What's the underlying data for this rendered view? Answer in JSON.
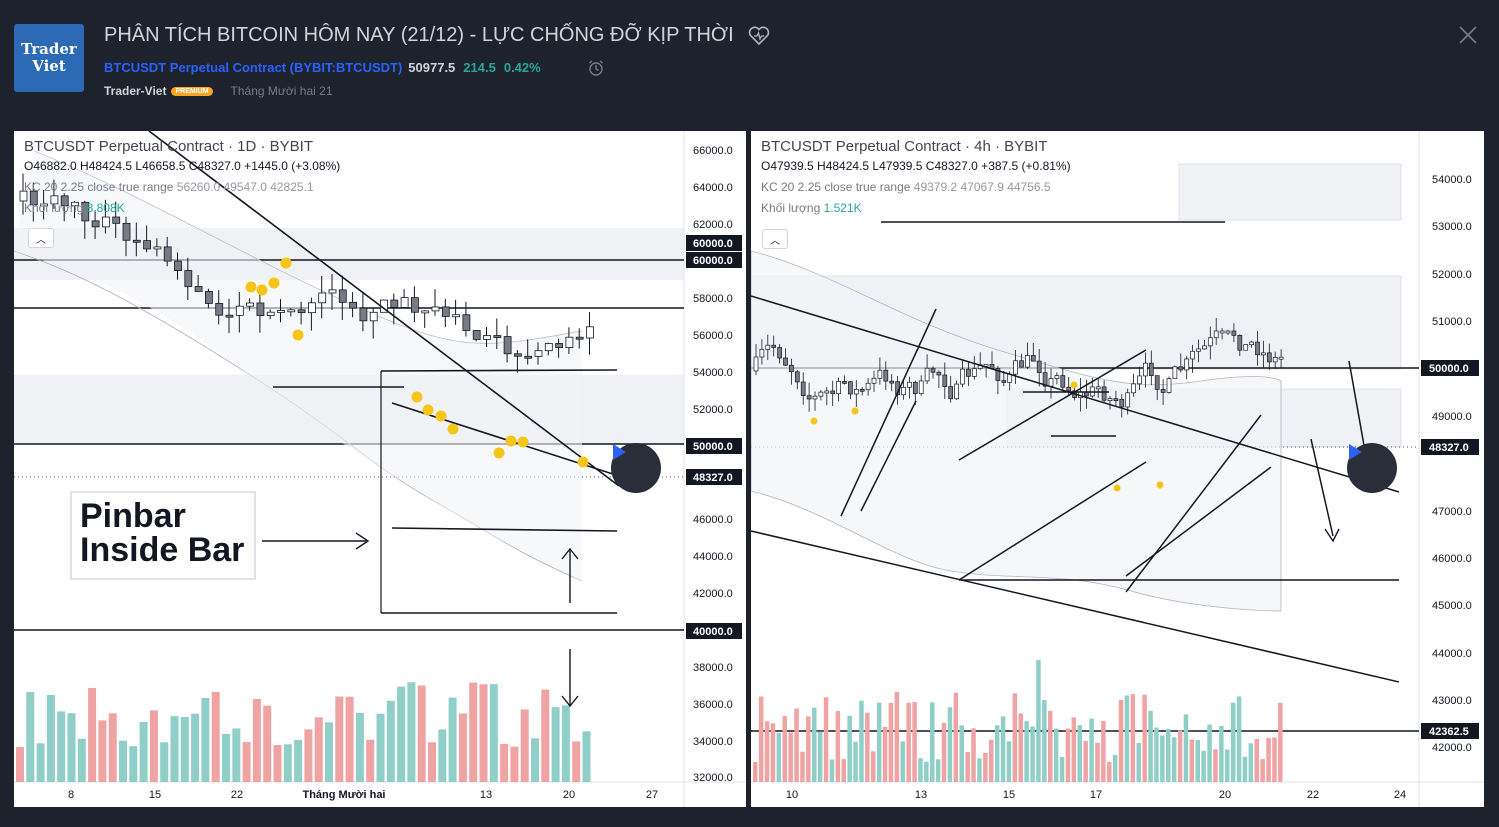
{
  "header": {
    "logo_line1": "Trader",
    "logo_line2": "Viet",
    "title": "PHÂN TÍCH BITCOIN HÔM NAY (21/12) - LỰC CHỐNG ĐỠ KỊP THỜI",
    "symbol": "BTCUSDT Perpetual Contract (BYBIT:BTCUSDT)",
    "price": "50977.5",
    "change": "214.5",
    "change_pct": "0.42%",
    "author": "Trader-Viet",
    "badge": "PREMIUM",
    "publish_date": "Tháng Mười hai 21",
    "icons": [
      "heart-icon",
      "alarm-icon",
      "close-icon",
      "play-icon"
    ]
  },
  "chart_left": {
    "title": "BTCUSDT Perpetual Contract · 1D · BYBIT",
    "ohlc": "O46882.0 H48424.5 L46658.5 C48327.0 +1445.0 (+3.08%)",
    "kc_label": "KC 20 2.25 close true range",
    "kc_values": "56260.0 49547.0 42825.1",
    "volume_label": "Khối lượng",
    "volume_value": "8.808K",
    "annotation": "Pinbar\nInside Bar",
    "price_ticks": [
      "66000.0",
      "64000.0",
      "62000.0",
      "58000.0",
      "56000.0",
      "54000.0",
      "52000.0",
      "46000.0",
      "44000.0",
      "42000.0",
      "38000.0",
      "36000.0",
      "34000.0",
      "32000.0"
    ],
    "price_tags": [
      {
        "text": "60000.0",
        "kind": "dark"
      },
      {
        "text": "60000.0",
        "kind": "dark"
      },
      {
        "text": "50000.0",
        "kind": "dark"
      },
      {
        "text": "48327.0",
        "kind": "dark"
      },
      {
        "text": "40000.0",
        "kind": "dark"
      }
    ],
    "time_ticks": [
      "8",
      "15",
      "22",
      "Tháng Mười hai",
      "13",
      "20",
      "27"
    ]
  },
  "chart_right": {
    "title": "BTCUSDT Perpetual Contract · 4h · BYBIT",
    "ohlc": "O47939.5 H48424.5 L47939.5 C48327.0 +387.5 (+0.81%)",
    "kc_label": "KC 20 2.25 close true range",
    "kc_values": "49379.2 47067.9 44756.5",
    "volume_label": "Khối lượng",
    "volume_value": "1.521K",
    "price_ticks": [
      "54000.0",
      "53000.0",
      "52000.0",
      "51000.0",
      "49000.0",
      "47000.0",
      "46000.0",
      "45000.0",
      "44000.0",
      "43000.0",
      "42000.0"
    ],
    "price_tags": [
      {
        "text": "50000.0",
        "kind": "dark"
      },
      {
        "text": "48327.0",
        "kind": "dark"
      },
      {
        "text": "42362.5",
        "kind": "dark"
      }
    ],
    "time_ticks": [
      "10",
      "13",
      "15",
      "17",
      "20",
      "22",
      "24"
    ]
  },
  "colors": {
    "background": "#1e222d",
    "up": "#ffffff",
    "down": "#787b86",
    "vol_up": "#8fcfc8",
    "vol_down": "#f0a3a3",
    "accent": "#2962ff",
    "positive": "#26a69a",
    "marker": "#f5c518"
  }
}
